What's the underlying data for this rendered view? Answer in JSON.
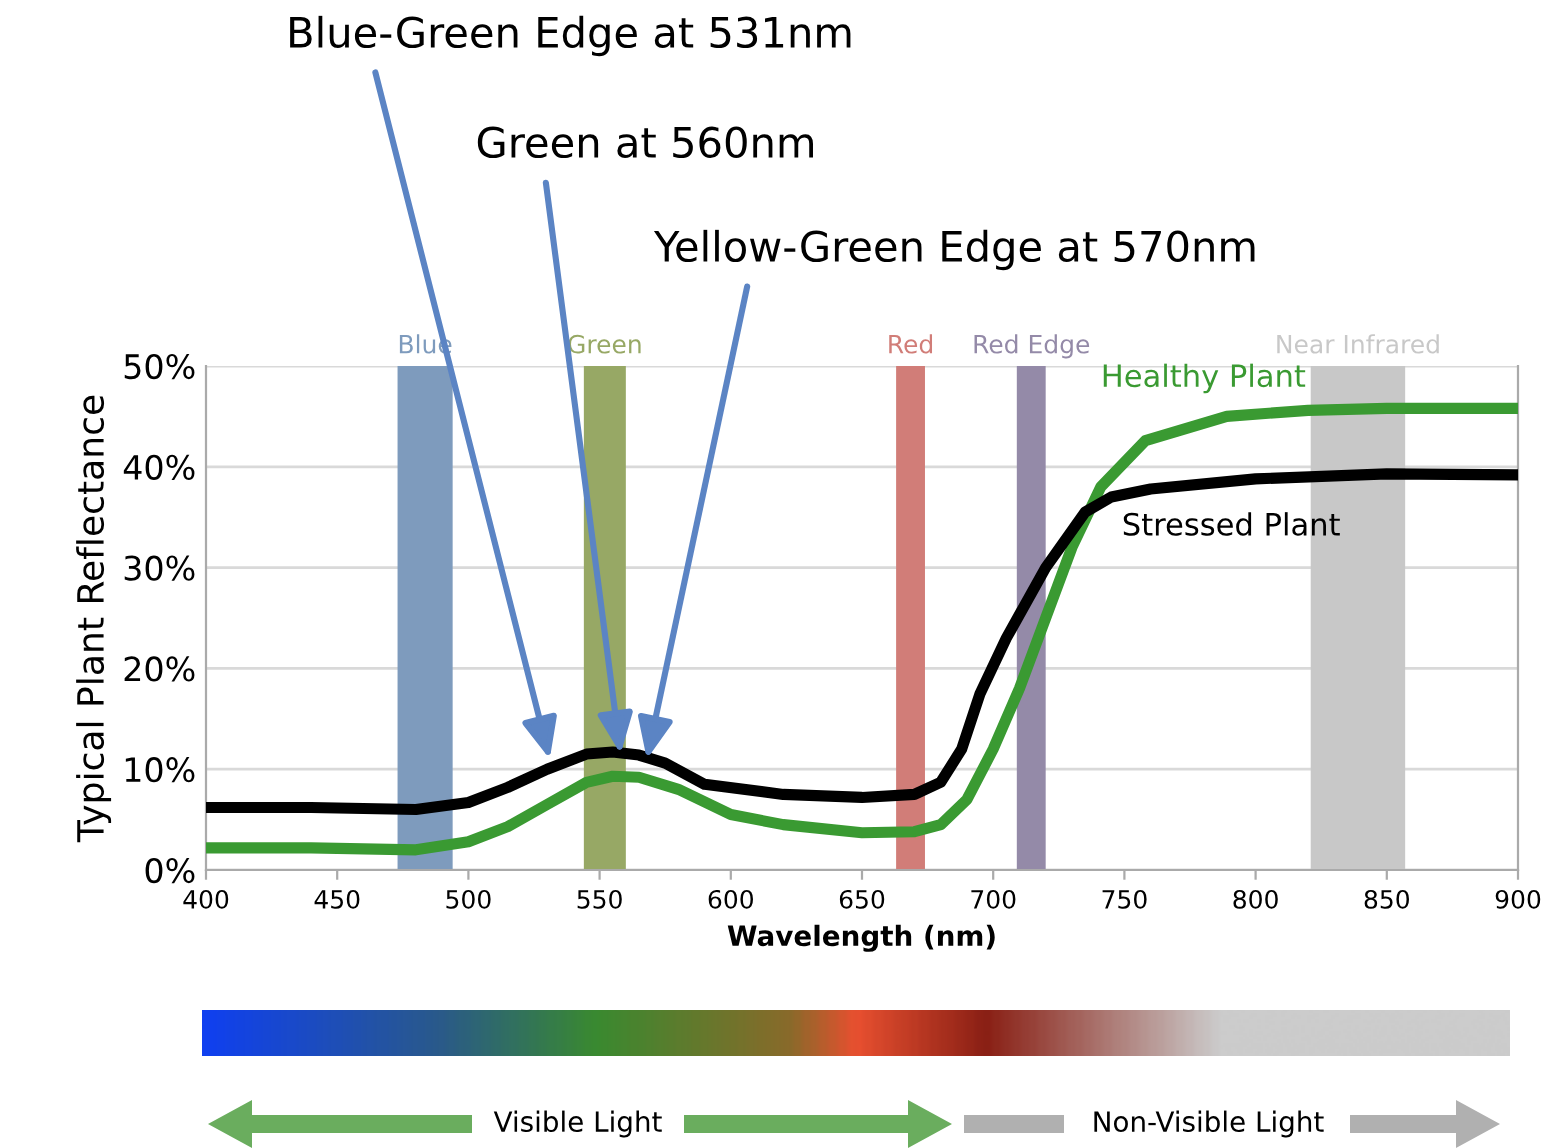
{
  "chart_data": {
    "type": "line",
    "xlabel": "Wavelength (nm)",
    "ylabel": "Typical Plant Reflectance",
    "xlim": [
      400,
      900
    ],
    "xticks": [
      400,
      450,
      500,
      550,
      600,
      650,
      700,
      750,
      800,
      850,
      900
    ],
    "ylim": [
      0,
      50
    ],
    "yticks": [
      {
        "value": 0,
        "label": "0%"
      },
      {
        "value": 10,
        "label": "10%"
      },
      {
        "value": 20,
        "label": "20%"
      },
      {
        "value": 30,
        "label": "30%"
      },
      {
        "value": 40,
        "label": "40%"
      },
      {
        "value": 50,
        "label": "50%"
      }
    ],
    "grid": "y",
    "legend": false,
    "series": [
      {
        "name": "Healthy Plant",
        "color": "#3a9a32",
        "x": [
          400,
          440,
          480,
          500,
          515,
          530,
          545,
          555,
          565,
          580,
          600,
          620,
          650,
          670,
          680,
          690,
          700,
          710,
          720,
          730,
          741,
          758,
          789,
          820,
          850,
          900
        ],
        "values": [
          2.2,
          2.2,
          2.0,
          2.8,
          4.3,
          6.5,
          8.7,
          9.3,
          9.2,
          8.0,
          5.5,
          4.5,
          3.7,
          3.8,
          4.5,
          7.0,
          12.0,
          18.0,
          25.0,
          32.0,
          38.0,
          42.6,
          45.0,
          45.6,
          45.8,
          45.8
        ]
      },
      {
        "name": "Stressed Plant",
        "color": "#000000",
        "x": [
          400,
          440,
          480,
          500,
          515,
          530,
          545,
          555,
          565,
          575,
          590,
          620,
          650,
          670,
          680,
          688,
          695,
          705,
          720,
          735,
          745,
          760,
          800,
          850,
          900
        ],
        "values": [
          6.2,
          6.2,
          6.0,
          6.7,
          8.2,
          10.0,
          11.5,
          11.7,
          11.4,
          10.6,
          8.5,
          7.5,
          7.2,
          7.5,
          8.7,
          12.0,
          17.5,
          23.0,
          30.0,
          35.5,
          37.0,
          37.8,
          38.8,
          39.3,
          39.2
        ]
      }
    ],
    "bands": [
      {
        "axis": "x",
        "from": 473,
        "to": 494,
        "label": "Blue",
        "color": "#7e9bbd"
      },
      {
        "axis": "x",
        "from": 544,
        "to": 560,
        "label": "Green",
        "color": "#97a865"
      },
      {
        "axis": "x",
        "from": 663,
        "to": 674,
        "label": "Red",
        "color": "#d17d78"
      },
      {
        "axis": "x",
        "from": 709,
        "to": 720,
        "label": "Red Edge",
        "color": "#948aa8"
      },
      {
        "axis": "x",
        "from": 821,
        "to": 857,
        "label": "Near Infrared",
        "color": "#c8c8c8"
      }
    ],
    "annotations": [
      {
        "text": "Blue-Green Edge at 531nm",
        "x": 531,
        "y": 11
      },
      {
        "text": "Green at 560nm",
        "x": 558,
        "y": 11.5
      },
      {
        "text": "Yellow-Green Edge at 570nm",
        "x": 568,
        "y": 11
      },
      "Visible Light",
      "Non-Visible Light"
    ]
  }
}
